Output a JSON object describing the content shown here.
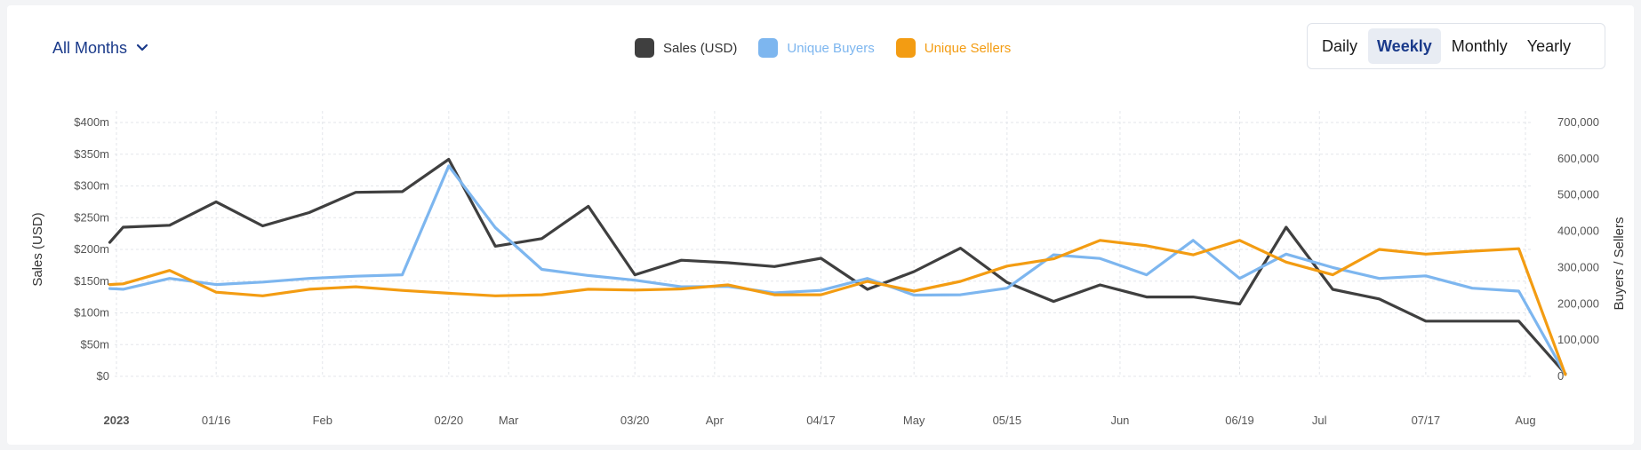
{
  "controls": {
    "months_label": "All Months",
    "periods": [
      "Daily",
      "Weekly",
      "Monthly",
      "Yearly"
    ],
    "active_period": "Weekly"
  },
  "colors": {
    "sales": "#3f3f3f",
    "buyers": "#7db6ef",
    "sellers": "#f39c12",
    "active_period_text": "#1a3a8a"
  },
  "chart_data": {
    "type": "line",
    "x": [
      "2023-01-02",
      "2023-01-09",
      "2023-01-16",
      "2023-01-23",
      "2023-01-30",
      "2023-02-06",
      "2023-02-13",
      "2023-02-20",
      "2023-02-27",
      "2023-03-06",
      "2023-03-13",
      "2023-03-20",
      "2023-03-27",
      "2023-04-03",
      "2023-04-10",
      "2023-04-17",
      "2023-04-24",
      "2023-05-01",
      "2023-05-08",
      "2023-05-15",
      "2023-05-22",
      "2023-05-29",
      "2023-06-05",
      "2023-06-12",
      "2023-06-19",
      "2023-06-26",
      "2023-07-03",
      "2023-07-10",
      "2023-07-17",
      "2023-07-24",
      "2023-07-31",
      "2023-08-07"
    ],
    "x_start_extra": {
      "x": "2022-12-31",
      "sales": 211,
      "buyers": 242000,
      "sellers": 253000
    },
    "series": [
      {
        "name": "Sales (USD)",
        "axis": "left",
        "color": "#3f3f3f",
        "values": [
          235,
          238,
          275,
          237,
          258,
          290,
          291,
          342,
          205,
          217,
          268,
          160,
          183,
          179,
          173,
          186,
          137,
          165,
          202,
          148,
          118,
          144,
          125,
          125,
          114,
          235,
          137,
          122,
          87,
          87,
          87,
          4
        ]
      },
      {
        "name": "Unique Buyers",
        "axis": "right",
        "color": "#7db6ef",
        "values": [
          240000,
          270000,
          253000,
          260000,
          270000,
          276000,
          280000,
          580000,
          410000,
          295000,
          278000,
          265000,
          247000,
          248000,
          230000,
          237000,
          270000,
          224000,
          225000,
          243000,
          335000,
          325000,
          280000,
          375000,
          270000,
          337000,
          300000,
          270000,
          277000,
          243000,
          235000,
          5000
        ]
      },
      {
        "name": "Unique Sellers",
        "axis": "right",
        "color": "#f39c12",
        "values": [
          255000,
          292000,
          232000,
          222000,
          240000,
          247000,
          237000,
          229000,
          222000,
          225000,
          240000,
          238000,
          241000,
          252000,
          225000,
          225000,
          262000,
          235000,
          262000,
          304000,
          324000,
          375000,
          360000,
          335000,
          375000,
          315000,
          280000,
          350000,
          337000,
          345000,
          352000,
          5000
        ]
      }
    ],
    "xlabel": "",
    "ylabel": "Sales (USD)",
    "y2label": "Buyers / Sellers",
    "ylim": [
      0,
      400
    ],
    "y2lim": [
      0,
      700000
    ],
    "y_ticks": [
      "$0",
      "$50m",
      "$100m",
      "$150m",
      "$200m",
      "$250m",
      "$300m",
      "$350m",
      "$400m"
    ],
    "y2_ticks": [
      "0",
      "100,000",
      "200,000",
      "300,000",
      "400,000",
      "500,000",
      "600,000",
      "700,000"
    ],
    "x_ticks": [
      {
        "label": "2023",
        "x": "2023-01-01",
        "bold": true
      },
      {
        "label": "01/16",
        "x": "2023-01-16"
      },
      {
        "label": "Feb",
        "x": "2023-02-01"
      },
      {
        "label": "02/20",
        "x": "2023-02-20"
      },
      {
        "label": "Mar",
        "x": "2023-03-01"
      },
      {
        "label": "03/20",
        "x": "2023-03-20"
      },
      {
        "label": "Apr",
        "x": "2023-04-01"
      },
      {
        "label": "04/17",
        "x": "2023-04-17"
      },
      {
        "label": "May",
        "x": "2023-05-01"
      },
      {
        "label": "05/15",
        "x": "2023-05-15"
      },
      {
        "label": "Jun",
        "x": "2023-06-01"
      },
      {
        "label": "06/19",
        "x": "2023-06-19"
      },
      {
        "label": "Jul",
        "x": "2023-07-01"
      },
      {
        "label": "07/17",
        "x": "2023-07-17"
      },
      {
        "label": "Aug",
        "x": "2023-08-01"
      }
    ],
    "grid": true,
    "legend": "top-center"
  }
}
